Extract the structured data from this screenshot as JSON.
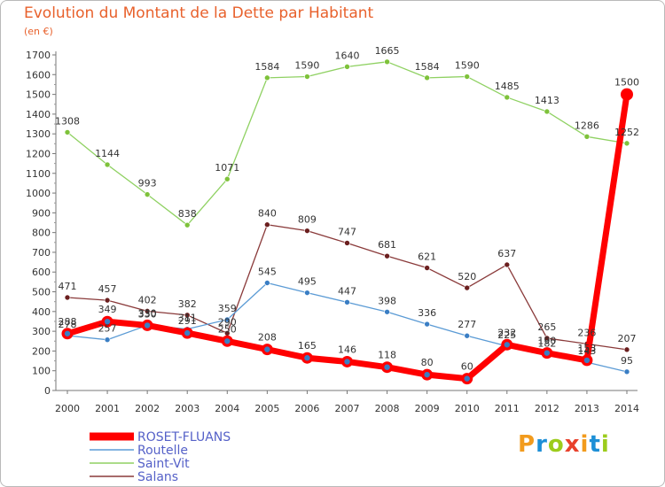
{
  "page": {
    "title": "Evolution du Montant de la Dette par Habitant",
    "subtitle": "(en €)"
  },
  "logo": {
    "letters": [
      "P",
      "r",
      "o",
      "x",
      "i",
      "t",
      "i"
    ],
    "colors": [
      "#f29b1d",
      "#1d8fd6",
      "#9ccc1c",
      "#e8412c",
      "#f29b1d",
      "#1d8fd6",
      "#9ccc1c"
    ]
  },
  "chart_data": {
    "type": "line",
    "title": "Evolution du Montant de la Dette par Habitant",
    "subtitle": "(en €)",
    "xlabel": "",
    "ylabel": "",
    "ylim": [
      0,
      1700
    ],
    "yticks": [
      0,
      100,
      200,
      300,
      400,
      500,
      600,
      700,
      800,
      900,
      1000,
      1100,
      1200,
      1300,
      1400,
      1500,
      1600,
      1700
    ],
    "grid": false,
    "legend_position": "bottom-left",
    "x": [
      2000,
      2001,
      2002,
      2003,
      2004,
      2005,
      2006,
      2007,
      2008,
      2009,
      2010,
      2011,
      2012,
      2013,
      2014
    ],
    "series": [
      {
        "name": "Saint-Vit",
        "color": "#8fd162",
        "marker": "#7ec23a",
        "values": [
          1308,
          1144,
          993,
          838,
          1071,
          1584,
          1590,
          1640,
          1665,
          1584,
          1590,
          1485,
          1413,
          1286,
          1252
        ],
        "labels": [
          "1308",
          "1144",
          "993",
          "838",
          "1071",
          "1584",
          "1590",
          "1640",
          "1665",
          "1584",
          "1590",
          "1485",
          "1413",
          "1286",
          "1252"
        ]
      },
      {
        "name": "Salans",
        "color": "#8a3a3a",
        "marker": "#6b1f1f",
        "values": [
          471,
          457,
          402,
          382,
          290,
          840,
          809,
          747,
          681,
          621,
          520,
          637,
          265,
          236,
          207
        ],
        "labels": [
          "471",
          "457",
          "402",
          "382",
          "290",
          "840",
          "809",
          "747",
          "681",
          "621",
          "520",
          "637",
          "265",
          "236",
          "207"
        ]
      },
      {
        "name": "Routelle",
        "color": "#5b9bd5",
        "marker": "#3a7ec4",
        "values": [
          278,
          257,
          330,
          311,
          359,
          545,
          495,
          447,
          398,
          336,
          277,
          225,
          182,
          143,
          95
        ],
        "labels": [
          "278",
          "257",
          "330",
          "311",
          "359",
          "545",
          "495",
          "447",
          "398",
          "336",
          "277",
          "225",
          "182",
          "143",
          "95"
        ]
      },
      {
        "name": "ROSET-FLUANS",
        "color": "#ff0000",
        "marker": "#ff0000",
        "values": [
          288,
          349,
          330,
          291,
          250,
          208,
          165,
          146,
          118,
          80,
          60,
          232,
          190,
          153,
          1500
        ],
        "labels": [
          "288",
          "349",
          "330",
          "291",
          "250",
          "208",
          "165",
          "146",
          "118",
          "80",
          "60",
          "232",
          "190",
          "153",
          "1500"
        ]
      }
    ],
    "legend": [
      "ROSET-FLUANS",
      "Routelle",
      "Saint-Vit",
      "Salans"
    ]
  }
}
